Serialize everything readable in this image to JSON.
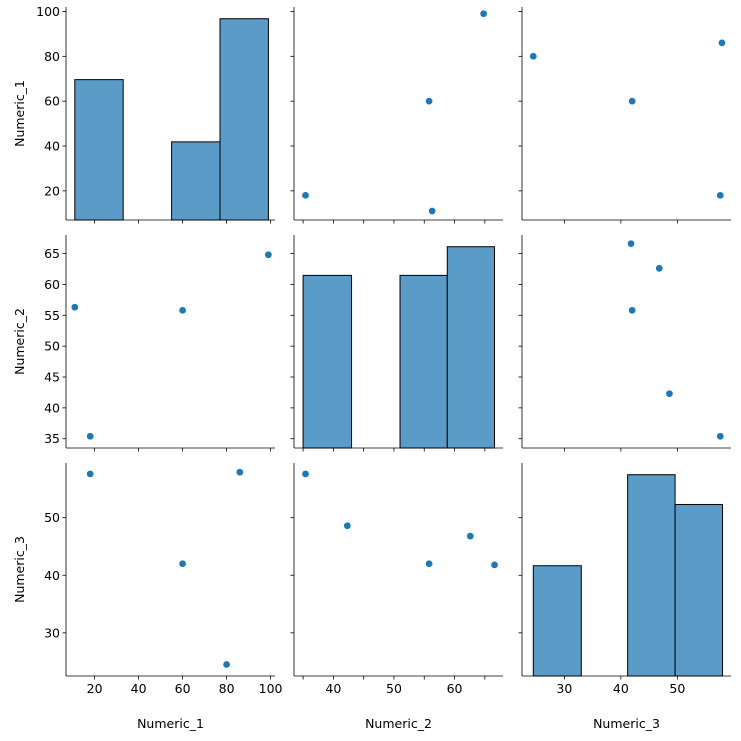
{
  "chart_data": {
    "type": "scatter",
    "subtype": "pairplot",
    "variables": [
      "Numeric_1",
      "Numeric_2",
      "Numeric_3"
    ],
    "colors": {
      "marker": "#1f77b4",
      "hist_fill": "#5a9bc8"
    },
    "axes": {
      "Numeric_1": {
        "ticks": [
          20,
          40,
          60,
          80,
          100
        ],
        "ytick_labels": [
          20,
          40,
          60,
          80,
          100
        ],
        "range": [
          7,
          102
        ]
      },
      "Numeric_2": {
        "ticks": [
          35,
          40,
          45,
          50,
          55,
          60,
          65
        ],
        "ytick_labels": [
          35,
          40,
          45,
          50,
          55,
          60,
          65
        ],
        "xtick_labels": [
          40,
          50,
          60
        ],
        "range": [
          33.5,
          68
        ]
      },
      "Numeric_3": {
        "ticks": [
          30,
          40,
          50
        ],
        "range": [
          22.5,
          59.5
        ]
      }
    },
    "points": [
      {
        "Numeric_1": 99,
        "Numeric_2": 64.8
      },
      {
        "Numeric_1": 60,
        "Numeric_2": 55.8,
        "Numeric_3": 42
      },
      {
        "Numeric_1": 18,
        "Numeric_2": 35.4,
        "Numeric_3": 57.6
      },
      {
        "Numeric_1": 11,
        "Numeric_2": 56.3
      },
      {
        "Numeric_1": 80,
        "Numeric_3": 24.5
      },
      {
        "Numeric_1": 86,
        "Numeric_3": 57.9
      },
      {
        "Numeric_2": 42.3,
        "Numeric_3": 48.6
      },
      {
        "Numeric_2": 62.6,
        "Numeric_3": 46.8
      },
      {
        "Numeric_2": 66.6,
        "Numeric_3": 41.8
      }
    ],
    "histograms": {
      "Numeric_1": {
        "bins": [
          [
            11,
            33
          ],
          [
            33,
            55
          ],
          [
            55,
            77
          ],
          [
            77,
            99
          ]
        ],
        "counts": [
          53,
          0,
          29.5,
          76
        ]
      },
      "Numeric_2": {
        "bins": [
          [
            35,
            43
          ],
          [
            43,
            51
          ],
          [
            51,
            58.8
          ],
          [
            58.8,
            66.6
          ]
        ],
        "counts": [
          50,
          0,
          50,
          58.3
        ]
      },
      "Numeric_3": {
        "bins": [
          [
            24.5,
            33
          ],
          [
            33,
            41.2
          ],
          [
            41.2,
            49.6
          ],
          [
            49.6,
            58
          ]
        ],
        "counts": [
          31.5,
          0,
          57.5,
          49
        ]
      }
    }
  }
}
